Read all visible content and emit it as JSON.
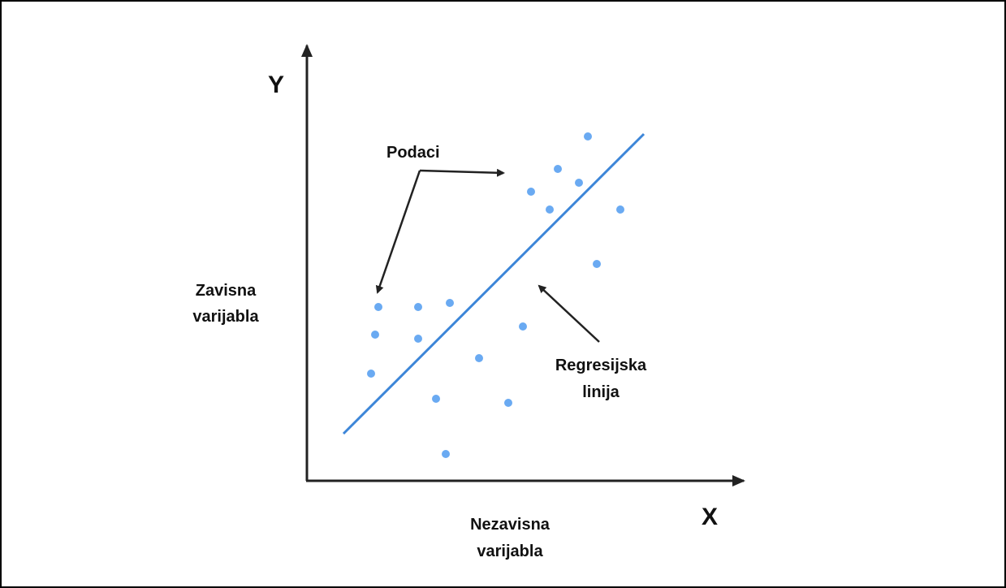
{
  "axes": {
    "y": "Y",
    "x": "X"
  },
  "labels": {
    "data": "Podaci",
    "dependent": [
      "Zavisna",
      "varijabla"
    ],
    "independent": [
      "Nezavisna",
      "varijabla"
    ],
    "regression": [
      "Regresijska",
      "linija"
    ]
  }
}
